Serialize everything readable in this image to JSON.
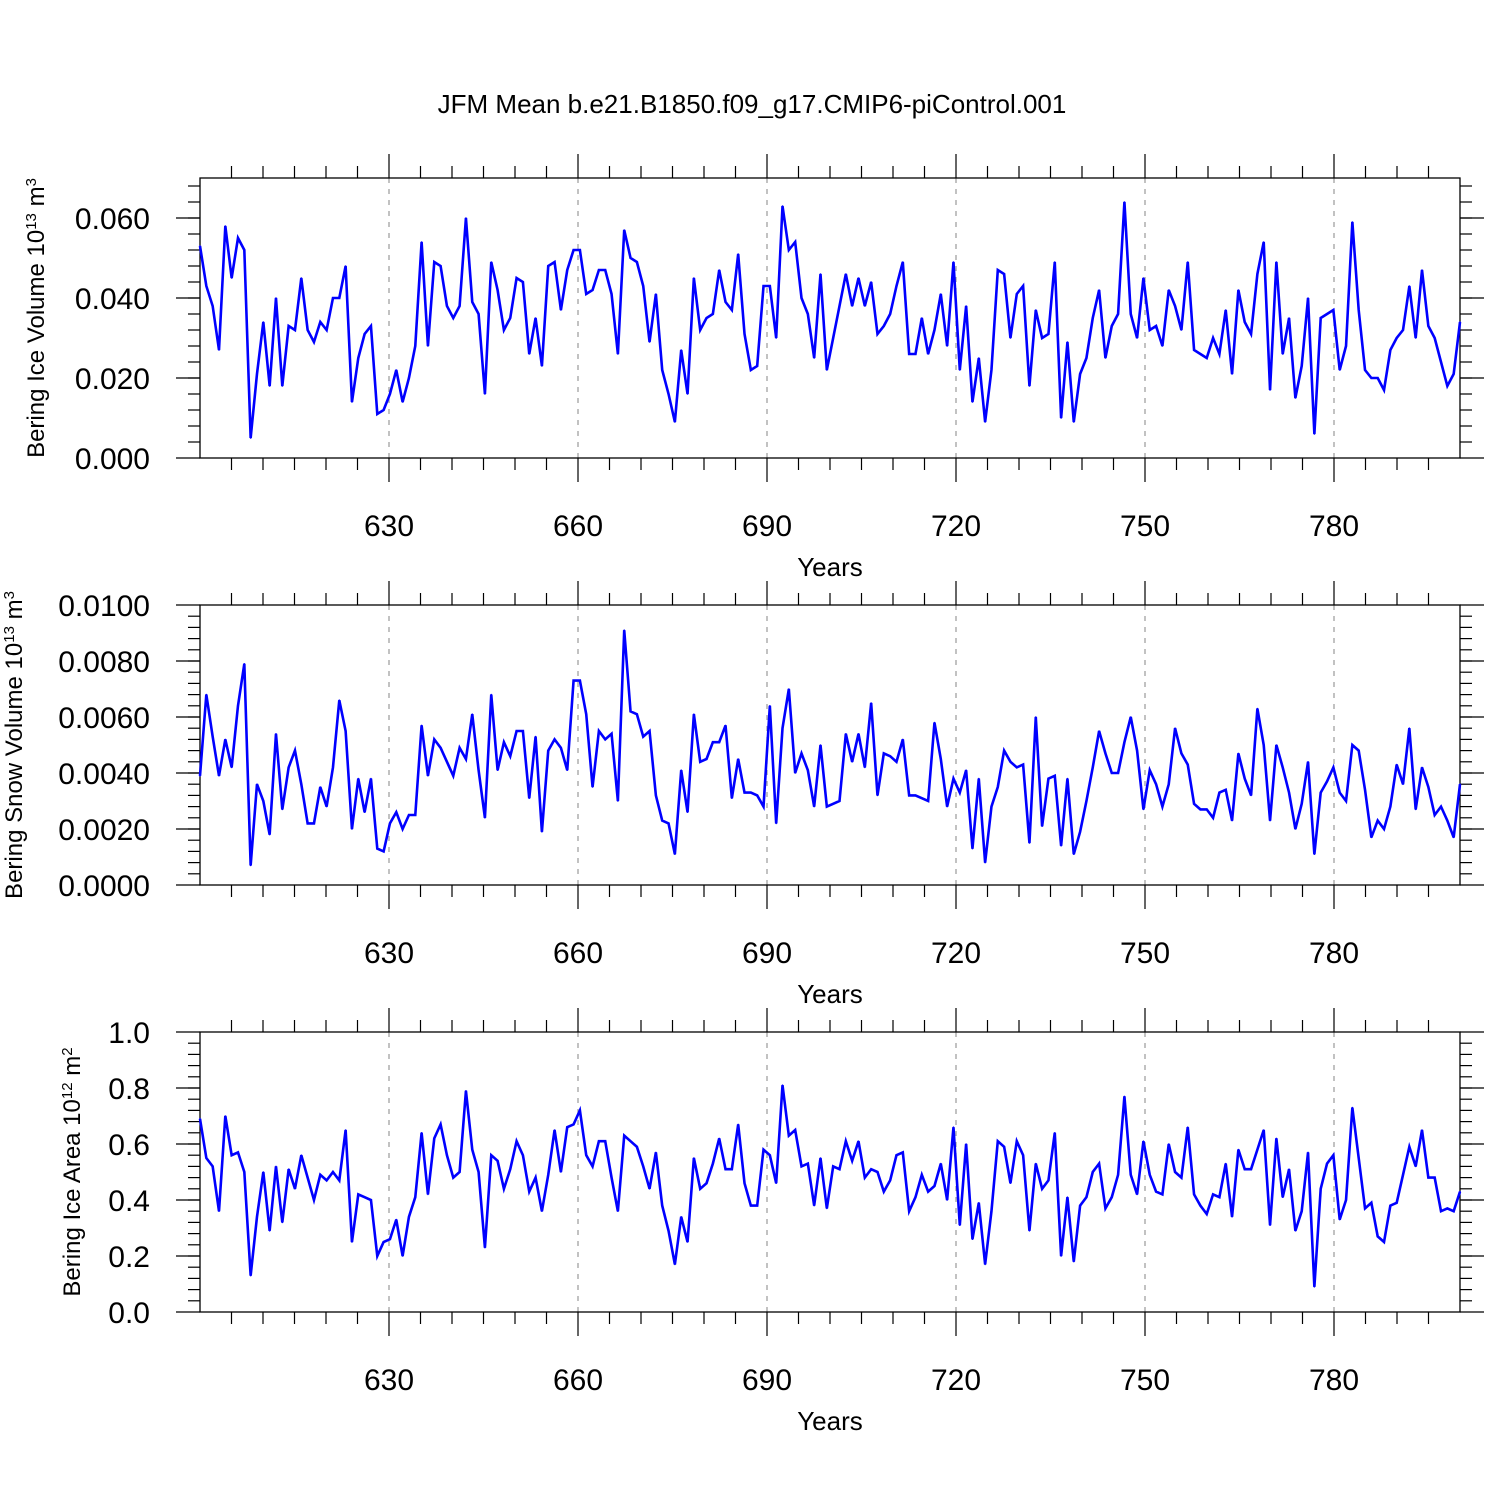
{
  "figure": {
    "title": "JFM Mean b.e21.B1850.f09_g17.CMIP6-piControl.001",
    "line_color": "#0000ff"
  },
  "chart_data": [
    {
      "type": "line",
      "title": "",
      "xlabel": "Years",
      "ylabel": {
        "text": "Bering Ice Volume 10",
        "exponent": "13",
        "unit": " m",
        "unit_exponent": "3"
      },
      "x_start": 600,
      "x_end": 800,
      "xlim": [
        600,
        800
      ],
      "xticks": [
        630,
        660,
        690,
        720,
        750,
        780
      ],
      "xtick_labels": [
        "630",
        "660",
        "690",
        "720",
        "750",
        "780"
      ],
      "ylim": [
        0,
        0.07
      ],
      "yticks": [
        0.0,
        0.02,
        0.04,
        0.06
      ],
      "ytick_labels": [
        "0.000",
        "0.020",
        "0.040",
        "0.060"
      ],
      "yminor_step": 0.004,
      "grid": "vertical dashed at major x ticks",
      "series": [
        {
          "values": [
            0.053,
            0.043,
            0.038,
            0.027,
            0.058,
            0.045,
            0.055,
            0.052,
            0.005,
            0.021,
            0.034,
            0.018,
            0.04,
            0.018,
            0.033,
            0.032,
            0.045,
            0.032,
            0.029,
            0.034,
            0.032,
            0.04,
            0.04,
            0.048,
            0.014,
            0.025,
            0.031,
            0.033,
            0.011,
            0.012,
            0.016,
            0.022,
            0.014,
            0.02,
            0.028,
            0.054,
            0.028,
            0.049,
            0.048,
            0.038,
            0.035,
            0.038,
            0.06,
            0.039,
            0.036,
            0.016,
            0.049,
            0.042,
            0.032,
            0.035,
            0.045,
            0.044,
            0.026,
            0.035,
            0.023,
            0.048,
            0.049,
            0.037,
            0.047,
            0.052,
            0.052,
            0.041,
            0.042,
            0.047,
            0.047,
            0.041,
            0.026,
            0.057,
            0.05,
            0.049,
            0.043,
            0.029,
            0.041,
            0.022,
            0.016,
            0.009,
            0.027,
            0.016,
            0.045,
            0.032,
            0.035,
            0.036,
            0.047,
            0.039,
            0.037,
            0.051,
            0.031,
            0.022,
            0.023,
            0.043,
            0.043,
            0.03,
            0.063,
            0.052,
            0.054,
            0.04,
            0.036,
            0.025,
            0.046,
            0.022,
            0.03,
            0.038,
            0.046,
            0.038,
            0.045,
            0.038,
            0.044,
            0.031,
            0.033,
            0.036,
            0.043,
            0.049,
            0.026,
            0.026,
            0.035,
            0.026,
            0.032,
            0.041,
            0.028,
            0.049,
            0.022,
            0.038,
            0.014,
            0.025,
            0.009,
            0.022,
            0.047,
            0.046,
            0.03,
            0.041,
            0.043,
            0.018,
            0.037,
            0.03,
            0.031,
            0.049,
            0.01,
            0.029,
            0.009,
            0.021,
            0.025,
            0.035,
            0.042,
            0.025,
            0.033,
            0.036,
            0.064,
            0.036,
            0.03,
            0.045,
            0.032,
            0.033,
            0.028,
            0.042,
            0.038,
            0.032,
            0.049,
            0.027,
            0.026,
            0.025,
            0.03,
            0.026,
            0.037,
            0.021,
            0.042,
            0.034,
            0.031,
            0.046,
            0.054,
            0.017,
            0.049,
            0.026,
            0.035,
            0.015,
            0.023,
            0.04,
            0.006,
            0.035,
            0.036,
            0.037,
            0.022,
            0.028,
            0.059,
            0.037,
            0.022,
            0.02,
            0.02,
            0.017,
            0.027,
            0.03,
            0.032,
            0.043,
            0.03,
            0.047,
            0.033,
            0.03,
            0.024,
            0.018,
            0.021,
            0.034
          ]
        }
      ]
    },
    {
      "type": "line",
      "title": "",
      "xlabel": "Years",
      "ylabel": {
        "text": "Bering Snow Volume 10",
        "exponent": "13",
        "unit": " m",
        "unit_exponent": "3"
      },
      "x_start": 600,
      "x_end": 800,
      "xlim": [
        600,
        800
      ],
      "xticks": [
        630,
        660,
        690,
        720,
        750,
        780
      ],
      "xtick_labels": [
        "630",
        "660",
        "690",
        "720",
        "750",
        "780"
      ],
      "ylim": [
        0,
        0.01
      ],
      "yticks": [
        0.0,
        0.002,
        0.004,
        0.006,
        0.008,
        0.01
      ],
      "ytick_labels": [
        "0.0000",
        "0.0020",
        "0.0040",
        "0.0060",
        "0.0080",
        "0.0100"
      ],
      "yminor_step": 0.0004,
      "grid": "vertical dashed at major x ticks",
      "series": [
        {
          "values": [
            0.0039,
            0.0068,
            0.0053,
            0.0039,
            0.0052,
            0.0042,
            0.0064,
            0.0079,
            0.0007,
            0.0036,
            0.003,
            0.0018,
            0.0054,
            0.0027,
            0.0042,
            0.0048,
            0.0036,
            0.0022,
            0.0022,
            0.0035,
            0.0028,
            0.0042,
            0.0066,
            0.0055,
            0.002,
            0.0038,
            0.0026,
            0.0038,
            0.0013,
            0.0012,
            0.0022,
            0.0026,
            0.002,
            0.0025,
            0.0025,
            0.0057,
            0.0039,
            0.0052,
            0.0049,
            0.0044,
            0.0039,
            0.0049,
            0.0045,
            0.0061,
            0.0041,
            0.0024,
            0.0068,
            0.0041,
            0.0051,
            0.0046,
            0.0055,
            0.0055,
            0.0031,
            0.0053,
            0.0019,
            0.0048,
            0.0052,
            0.0049,
            0.0041,
            0.0073,
            0.0073,
            0.0061,
            0.0035,
            0.0055,
            0.0052,
            0.0054,
            0.003,
            0.0091,
            0.0062,
            0.0061,
            0.0053,
            0.0055,
            0.0032,
            0.0023,
            0.0022,
            0.0011,
            0.0041,
            0.0026,
            0.0061,
            0.0044,
            0.0045,
            0.0051,
            0.0051,
            0.0057,
            0.0031,
            0.0045,
            0.0033,
            0.0033,
            0.0032,
            0.0028,
            0.0064,
            0.0022,
            0.0056,
            0.007,
            0.004,
            0.0047,
            0.0041,
            0.0028,
            0.005,
            0.0028,
            0.0029,
            0.003,
            0.0054,
            0.0044,
            0.0054,
            0.0042,
            0.0065,
            0.0032,
            0.0047,
            0.0046,
            0.0044,
            0.0052,
            0.0032,
            0.0032,
            0.0031,
            0.003,
            0.0058,
            0.0045,
            0.0028,
            0.0038,
            0.0033,
            0.0041,
            0.0013,
            0.0038,
            0.0008,
            0.0028,
            0.0035,
            0.0048,
            0.0044,
            0.0042,
            0.0043,
            0.0015,
            0.006,
            0.0021,
            0.0038,
            0.0039,
            0.0014,
            0.0038,
            0.0011,
            0.0019,
            0.003,
            0.0042,
            0.0055,
            0.0047,
            0.004,
            0.004,
            0.0051,
            0.006,
            0.0048,
            0.0027,
            0.0041,
            0.0036,
            0.0028,
            0.0036,
            0.0056,
            0.0047,
            0.0043,
            0.0029,
            0.0027,
            0.0027,
            0.0024,
            0.0033,
            0.0034,
            0.0023,
            0.0047,
            0.0038,
            0.0032,
            0.0063,
            0.005,
            0.0023,
            0.005,
            0.0042,
            0.0033,
            0.002,
            0.0029,
            0.0044,
            0.0011,
            0.0033,
            0.0037,
            0.0042,
            0.0033,
            0.003,
            0.005,
            0.0048,
            0.0034,
            0.0017,
            0.0023,
            0.002,
            0.0028,
            0.0043,
            0.0036,
            0.0056,
            0.0027,
            0.0042,
            0.0035,
            0.0025,
            0.0028,
            0.0023,
            0.0017,
            0.0036
          ]
        }
      ]
    },
    {
      "type": "line",
      "title": "",
      "xlabel": "Years",
      "ylabel": {
        "text": "Bering Ice Area 10",
        "exponent": "12",
        "unit": " m",
        "unit_exponent": "2"
      },
      "x_start": 600,
      "x_end": 800,
      "xlim": [
        600,
        800
      ],
      "xticks": [
        630,
        660,
        690,
        720,
        750,
        780
      ],
      "xtick_labels": [
        "630",
        "660",
        "690",
        "720",
        "750",
        "780"
      ],
      "ylim": [
        0,
        1
      ],
      "yticks": [
        0.0,
        0.2,
        0.4,
        0.6,
        0.8,
        1.0
      ],
      "ytick_labels": [
        "0.0",
        "0.2",
        "0.4",
        "0.6",
        "0.8",
        "1.0"
      ],
      "yminor_step": 0.04,
      "grid": "vertical dashed at major x ticks",
      "series": [
        {
          "values": [
            0.69,
            0.55,
            0.52,
            0.36,
            0.7,
            0.56,
            0.57,
            0.5,
            0.13,
            0.34,
            0.5,
            0.29,
            0.52,
            0.32,
            0.51,
            0.44,
            0.56,
            0.48,
            0.4,
            0.49,
            0.47,
            0.5,
            0.47,
            0.65,
            0.25,
            0.42,
            0.41,
            0.4,
            0.2,
            0.25,
            0.26,
            0.33,
            0.2,
            0.34,
            0.41,
            0.64,
            0.42,
            0.62,
            0.67,
            0.56,
            0.48,
            0.5,
            0.79,
            0.58,
            0.5,
            0.23,
            0.56,
            0.54,
            0.44,
            0.51,
            0.61,
            0.56,
            0.43,
            0.48,
            0.36,
            0.49,
            0.65,
            0.5,
            0.66,
            0.67,
            0.72,
            0.56,
            0.52,
            0.61,
            0.61,
            0.48,
            0.36,
            0.63,
            0.61,
            0.59,
            0.52,
            0.44,
            0.57,
            0.38,
            0.29,
            0.17,
            0.34,
            0.25,
            0.55,
            0.44,
            0.46,
            0.53,
            0.62,
            0.51,
            0.51,
            0.67,
            0.46,
            0.38,
            0.38,
            0.58,
            0.56,
            0.46,
            0.81,
            0.63,
            0.65,
            0.52,
            0.53,
            0.38,
            0.55,
            0.37,
            0.52,
            0.51,
            0.61,
            0.54,
            0.61,
            0.48,
            0.51,
            0.5,
            0.43,
            0.47,
            0.56,
            0.57,
            0.36,
            0.41,
            0.49,
            0.43,
            0.45,
            0.53,
            0.4,
            0.66,
            0.31,
            0.6,
            0.26,
            0.39,
            0.17,
            0.36,
            0.61,
            0.59,
            0.46,
            0.61,
            0.56,
            0.29,
            0.53,
            0.44,
            0.47,
            0.64,
            0.2,
            0.41,
            0.18,
            0.38,
            0.41,
            0.5,
            0.53,
            0.37,
            0.41,
            0.49,
            0.77,
            0.49,
            0.42,
            0.61,
            0.49,
            0.43,
            0.42,
            0.6,
            0.5,
            0.48,
            0.66,
            0.42,
            0.38,
            0.35,
            0.42,
            0.41,
            0.53,
            0.34,
            0.58,
            0.51,
            0.51,
            0.58,
            0.65,
            0.31,
            0.62,
            0.41,
            0.51,
            0.29,
            0.36,
            0.57,
            0.09,
            0.44,
            0.53,
            0.56,
            0.33,
            0.4,
            0.73,
            0.55,
            0.37,
            0.39,
            0.27,
            0.25,
            0.38,
            0.39,
            0.49,
            0.59,
            0.52,
            0.65,
            0.48,
            0.48,
            0.36,
            0.37,
            0.36,
            0.43
          ]
        }
      ]
    }
  ]
}
